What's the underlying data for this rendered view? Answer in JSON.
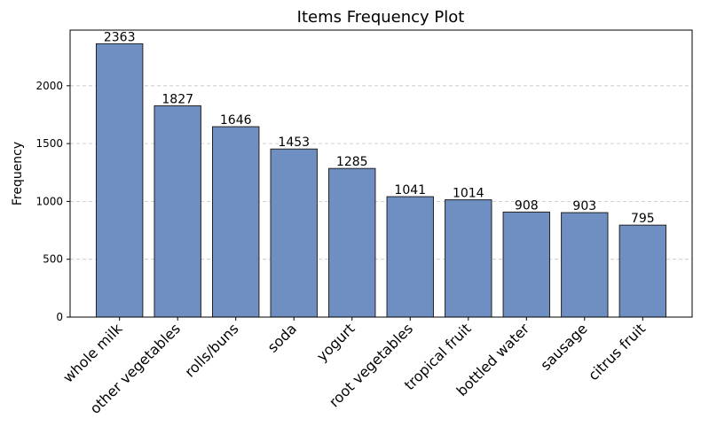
{
  "chart_data": {
    "type": "bar",
    "title": "Items Frequency Plot",
    "y_label": "Frequency",
    "categories": [
      "whole milk",
      "other vegetables",
      "rolls/buns",
      "soda",
      "yogurt",
      "root vegetables",
      "tropical fruit",
      "bottled water",
      "sausage",
      "citrus fruit"
    ],
    "values": [
      2363,
      1827,
      1646,
      1453,
      1285,
      1041,
      1014,
      908,
      903,
      795
    ],
    "color": "#6f8fc2",
    "edge_color": "#222222",
    "ylim": [
      0,
      2481
    ],
    "yticks": [
      0,
      500,
      1000,
      1500,
      2000
    ],
    "grid": true
  }
}
